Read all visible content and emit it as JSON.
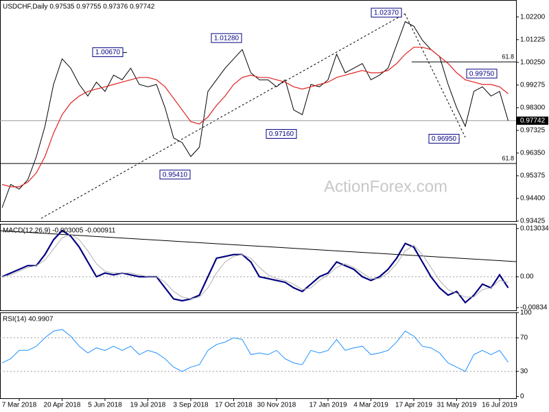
{
  "chart_data": [
    {
      "type": "line",
      "title": "USDCHF,Daily 0.97535 0.97755 0.97376 0.97742",
      "watermark": "ActionForex.com",
      "ylim": [
        0.93425,
        1.0293
      ],
      "yticks": [
        {
          "value": 1.022,
          "label": "1.02200"
        },
        {
          "value": 1.01225,
          "label": "1.01225"
        },
        {
          "value": 1.0025,
          "label": "1.00250"
        },
        {
          "value": 0.99275,
          "label": "0.99275"
        },
        {
          "value": 0.983,
          "label": "0.98300"
        },
        {
          "value": 0.97325,
          "label": "0.97325"
        },
        {
          "value": 0.9635,
          "label": "0.96350"
        },
        {
          "value": 0.95375,
          "label": "0.95375"
        },
        {
          "value": 0.944,
          "label": "0.94400"
        },
        {
          "value": 0.93425,
          "label": "0.93425"
        }
      ],
      "last_price": 0.97742,
      "fib_levels": [
        {
          "label": "61.8",
          "value": 1.0027
        },
        {
          "label": "61.8",
          "value": 0.959
        }
      ],
      "annotations": [
        {
          "value": 1.0067,
          "label": "1.00670"
        },
        {
          "value": 1.0128,
          "label": "1.01280"
        },
        {
          "value": 1.0237,
          "label": "1.02370"
        },
        {
          "value": 0.9716,
          "label": "0.97160"
        },
        {
          "value": 0.9541,
          "label": "0.95410"
        },
        {
          "value": 0.9695,
          "label": "0.96950"
        },
        {
          "value": 0.9975,
          "label": "0.99750"
        }
      ],
      "series": [
        {
          "color": "#000000",
          "values": [
            0.94,
            0.95,
            0.948,
            0.952,
            0.962,
            0.975,
            0.993,
            1.004,
            1.0,
            0.993,
            0.988,
            0.994,
            0.99,
            0.997,
            0.995,
            1.0,
            0.993,
            0.992,
            0.993,
            0.983,
            0.97,
            0.968,
            0.962,
            0.966,
            0.99,
            0.995,
            1.0,
            1.004,
            1.008,
            0.998,
            0.995,
            0.995,
            0.992,
            0.995,
            0.982,
            0.98,
            0.993,
            0.992,
            0.995,
            1.006,
            0.998,
            1.0,
            1.002,
            0.995,
            0.997,
            1.0,
            1.01,
            1.02,
            1.018,
            1.012,
            1.008,
            1.005,
            0.993,
            0.983,
            0.975,
            0.99,
            0.992,
            0.988,
            0.99,
            0.9774
          ]
        },
        {
          "color": "#e02020",
          "values": [
            0.95,
            0.949,
            0.949,
            0.951,
            0.955,
            0.962,
            0.972,
            0.98,
            0.985,
            0.988,
            0.99,
            0.991,
            0.992,
            0.993,
            0.994,
            0.995,
            0.996,
            0.996,
            0.995,
            0.992,
            0.987,
            0.982,
            0.977,
            0.976,
            0.979,
            0.984,
            0.988,
            0.993,
            0.996,
            0.997,
            0.996,
            0.996,
            0.995,
            0.994,
            0.992,
            0.991,
            0.992,
            0.993,
            0.994,
            0.996,
            0.997,
            0.998,
            0.999,
            0.998,
            0.998,
            0.999,
            1.002,
            1.006,
            1.009,
            1.009,
            1.008,
            1.005,
            1.002,
            0.998,
            0.995,
            0.994,
            0.993,
            0.993,
            0.992,
            0.989
          ]
        }
      ]
    },
    {
      "type": "line",
      "title": "MACD(12,26,9) -0.003005 -0.000911",
      "ylim": [
        -0.0091,
        0.0143
      ],
      "yticks": [
        0.013034,
        {
          "value": 0,
          "label": "0.00"
        },
        -0.00834
      ],
      "levels": [
        0
      ],
      "series": [
        {
          "color": "#000080",
          "values": [
            0,
            0.001,
            0.002,
            0.003,
            0.003,
            0.006,
            0.01,
            0.0125,
            0.011,
            0.008,
            0.004,
            0,
            0.001,
            0.0005,
            0.001,
            0.0005,
            0,
            0,
            0,
            -0.003,
            -0.006,
            -0.0065,
            -0.006,
            -0.005,
            0,
            0.005,
            0.0055,
            0.006,
            0.006,
            0.004,
            0,
            -0.0005,
            -0.001,
            -0.0015,
            -0.003,
            -0.004,
            -0.002,
            0,
            0.001,
            0.004,
            0.003,
            0.002,
            0,
            -0.001,
            0,
            0.002,
            0.005,
            0.009,
            0.008,
            0.004,
            0,
            -0.003,
            -0.005,
            -0.004,
            -0.007,
            -0.005,
            -0.002,
            -0.003,
            0.0005,
            -0.003
          ]
        },
        {
          "color": "#b0b0b0",
          "values": [
            0,
            0.0005,
            0.0015,
            0.0025,
            0.003,
            0.0045,
            0.0075,
            0.0105,
            0.0115,
            0.01,
            0.007,
            0.0035,
            0.0015,
            0.001,
            0.001,
            0.001,
            0.0005,
            0,
            0,
            -0.0015,
            -0.004,
            -0.0055,
            -0.006,
            -0.0055,
            -0.003,
            0.001,
            0.004,
            0.0055,
            0.006,
            0.005,
            0.0025,
            0.0005,
            -0.0005,
            -0.001,
            -0.002,
            -0.0035,
            -0.003,
            -0.001,
            0.0005,
            0.0025,
            0.0035,
            0.0025,
            0.001,
            -0.0005,
            -0.0005,
            0.001,
            0.0035,
            0.007,
            0.0085,
            0.006,
            0.0025,
            -0.001,
            -0.0035,
            -0.0045,
            -0.0055,
            -0.0055,
            -0.0035,
            -0.003,
            -0.001,
            -0.0015
          ]
        }
      ]
    },
    {
      "type": "line",
      "title": "RSI(14) 40.9907",
      "ylim": [
        -2,
        100.2
      ],
      "yticks": [
        100,
        70,
        30,
        0
      ],
      "levels": [
        70,
        30
      ],
      "categories": [
        null,
        null,
        "7 Mar 2018",
        null,
        null,
        null,
        null,
        "20 Apr 2018",
        null,
        null,
        null,
        null,
        "5 Jun 2018",
        null,
        null,
        null,
        null,
        "19 Jul 2018",
        null,
        null,
        null,
        null,
        "3 Sep 2018",
        null,
        null,
        null,
        null,
        "17 Oct 2018",
        null,
        null,
        null,
        null,
        "30 Nov 2018",
        null,
        null,
        null,
        null,
        null,
        "17 Jan 2019",
        null,
        null,
        null,
        null,
        "4 Mar 2019",
        null,
        null,
        null,
        null,
        "17 Apr 2019",
        null,
        null,
        null,
        null,
        "31 May 2019",
        null,
        null,
        null,
        null,
        "16 Jul 2019",
        null
      ],
      "series": [
        {
          "color": "#1e90ff",
          "values": [
            40,
            45,
            55,
            55,
            60,
            70,
            78,
            80,
            72,
            60,
            52,
            58,
            55,
            60,
            55,
            60,
            50,
            55,
            52,
            45,
            35,
            30,
            35,
            38,
            55,
            62,
            65,
            70,
            68,
            50,
            52,
            50,
            55,
            45,
            40,
            38,
            55,
            52,
            55,
            68,
            55,
            58,
            60,
            50,
            52,
            55,
            65,
            78,
            72,
            60,
            58,
            52,
            40,
            35,
            30,
            50,
            55,
            50,
            55,
            41
          ]
        }
      ]
    }
  ]
}
